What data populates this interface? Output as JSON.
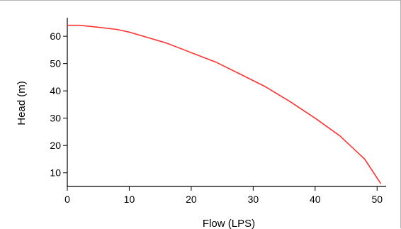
{
  "chart_data": {
    "type": "line",
    "title": "",
    "xlabel": "Flow (LPS)",
    "ylabel": "Head (m)",
    "xlim": [
      0,
      51
    ],
    "ylim": [
      5,
      66
    ],
    "xticks": [
      0,
      10,
      20,
      30,
      40,
      50
    ],
    "yticks": [
      10,
      20,
      30,
      40,
      50,
      60
    ],
    "grid": false,
    "series": [
      {
        "color": "#ff3333",
        "x": [
          0,
          2,
          5,
          8,
          10,
          13,
          16,
          20,
          24,
          28,
          32,
          36,
          40,
          44,
          48,
          50.6
        ],
        "y": [
          64,
          64,
          63.3,
          62.5,
          61.5,
          59.5,
          57.5,
          54,
          50.5,
          46,
          41.5,
          36,
          30,
          23.5,
          15,
          6
        ]
      }
    ]
  }
}
